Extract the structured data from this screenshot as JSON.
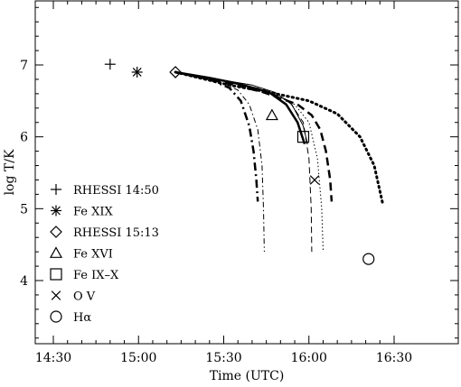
{
  "chart_data": {
    "type": "scatter",
    "xlabel": "Time (UTC)",
    "ylabel": "log T/K",
    "xlim": [
      0,
      120
    ],
    "ylim": [
      3.1,
      7.9
    ],
    "x_ticks": [
      {
        "v": 0,
        "label": "14:30"
      },
      {
        "v": 30,
        "label": "15:00"
      },
      {
        "v": 60,
        "label": "15:30"
      },
      {
        "v": 90,
        "label": "16:00"
      },
      {
        "v": 120,
        "label": "16:30"
      }
    ],
    "y_ticks": [
      4,
      5,
      6,
      7
    ],
    "legend_position": "bottom-left",
    "legend": [
      {
        "symbol": "plus",
        "label": "RHESSI 14:50"
      },
      {
        "symbol": "asterisk",
        "label": "Fe XIX"
      },
      {
        "symbol": "diamond",
        "label": "RHESSI 15:13"
      },
      {
        "symbol": "triangle",
        "label": "Fe XVI"
      },
      {
        "symbol": "square",
        "label": "Fe IX–X"
      },
      {
        "symbol": "cross",
        "label": "O V"
      },
      {
        "symbol": "circle",
        "label": "Hα"
      }
    ],
    "points": [
      {
        "symbol": "plus",
        "x": 20,
        "y": 7.01
      },
      {
        "symbol": "asterisk",
        "x": 29.5,
        "y": 6.9
      },
      {
        "symbol": "diamond",
        "x": 43,
        "y": 6.9
      },
      {
        "symbol": "triangle",
        "x": 77,
        "y": 6.3
      },
      {
        "symbol": "square",
        "x": 88,
        "y": 6.0
      },
      {
        "symbol": "cross",
        "x": 92,
        "y": 5.4
      },
      {
        "symbol": "circle",
        "x": 111,
        "y": 4.3
      }
    ],
    "series": [
      {
        "dash": "dash-dot-thick",
        "width": 2.5,
        "points": [
          [
            43,
            6.9
          ],
          [
            55,
            6.8
          ],
          [
            62,
            6.68
          ],
          [
            66,
            6.5
          ],
          [
            69,
            6.15
          ],
          [
            70.5,
            5.8
          ],
          [
            71.5,
            5.4
          ],
          [
            72,
            5.1
          ]
        ]
      },
      {
        "dash": "dash-dot-thin",
        "width": 1,
        "points": [
          [
            43,
            6.9
          ],
          [
            58,
            6.78
          ],
          [
            65,
            6.65
          ],
          [
            69,
            6.45
          ],
          [
            72,
            6.1
          ],
          [
            73.5,
            5.6
          ],
          [
            74,
            5.0
          ],
          [
            74.3,
            4.4
          ]
        ]
      },
      {
        "dash": "long-dash-thin",
        "width": 1,
        "points": [
          [
            43,
            6.9
          ],
          [
            60,
            6.78
          ],
          [
            74,
            6.66
          ],
          [
            83,
            6.5
          ],
          [
            88,
            6.2
          ],
          [
            90,
            5.7
          ],
          [
            90.8,
            5.0
          ],
          [
            91,
            4.4
          ]
        ]
      },
      {
        "dash": "solid",
        "width": 2.5,
        "points": [
          [
            43,
            6.9
          ],
          [
            55,
            6.82
          ],
          [
            65,
            6.74
          ],
          [
            76,
            6.62
          ],
          [
            82,
            6.45
          ],
          [
            86,
            6.2
          ],
          [
            88.5,
            5.9
          ]
        ]
      },
      {
        "dash": "solid-thin",
        "width": 1,
        "points": [
          [
            43,
            6.9
          ],
          [
            58,
            6.8
          ],
          [
            70,
            6.72
          ],
          [
            78,
            6.62
          ],
          [
            84,
            6.45
          ],
          [
            88,
            6.15
          ],
          [
            89.5,
            5.9
          ]
        ]
      },
      {
        "dash": "long-dash-thick",
        "width": 2.5,
        "points": [
          [
            43,
            6.9
          ],
          [
            62,
            6.74
          ],
          [
            74,
            6.62
          ],
          [
            86,
            6.45
          ],
          [
            91,
            6.3
          ],
          [
            94,
            6.1
          ],
          [
            96,
            5.8
          ],
          [
            97.5,
            5.4
          ],
          [
            98,
            5.1
          ]
        ]
      },
      {
        "dash": "dotted-thin",
        "width": 1,
        "points": [
          [
            43,
            6.9
          ],
          [
            60,
            6.77
          ],
          [
            75,
            6.64
          ],
          [
            85,
            6.45
          ],
          [
            90,
            6.2
          ],
          [
            93,
            5.7
          ],
          [
            94.5,
            5.0
          ],
          [
            95,
            4.4
          ]
        ]
      },
      {
        "dash": "dotted-thick",
        "width": 3,
        "points": [
          [
            43,
            6.9
          ],
          [
            62,
            6.72
          ],
          [
            76,
            6.62
          ],
          [
            90,
            6.5
          ],
          [
            100,
            6.32
          ],
          [
            108,
            6.0
          ],
          [
            113,
            5.6
          ],
          [
            116,
            5.07
          ]
        ]
      }
    ]
  }
}
